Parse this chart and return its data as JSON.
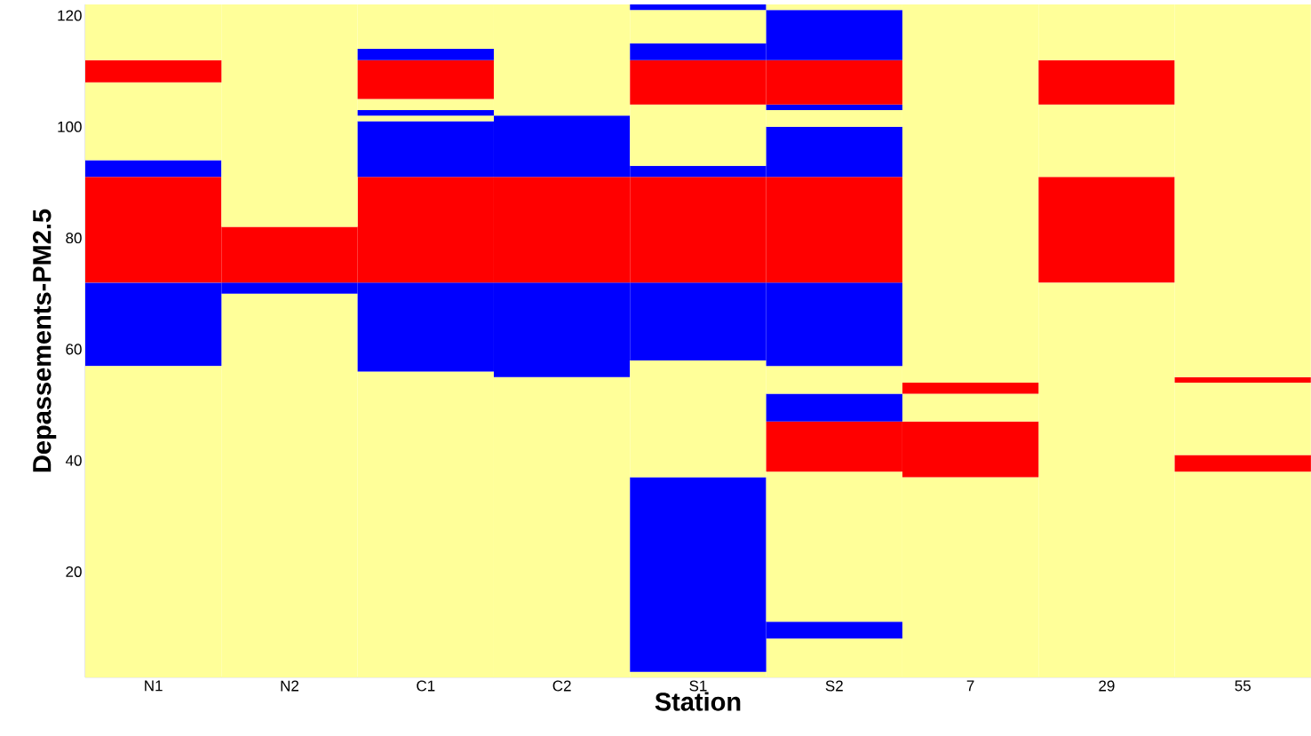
{
  "chart_data": {
    "type": "bar",
    "stacked": true,
    "xlabel": "Station",
    "ylabel": "Depassements-PM2.5",
    "categories": [
      "N1",
      "N2",
      "C1",
      "C2",
      "S1",
      "S2",
      "7",
      "29",
      "55"
    ],
    "ylim": [
      1,
      122
    ],
    "yticks": [
      20,
      40,
      60,
      80,
      100,
      120
    ],
    "grid": false,
    "series": [
      {
        "values": [
          57,
          70,
          56,
          55,
          2,
          8,
          37,
          72,
          38
        ],
        "colors": [
          "#ffff99",
          "#ffff99",
          "#ffff99",
          "#ffff99",
          "#ffff99",
          "#ffff99",
          "#ffff99",
          "#ffff99",
          "#ffff99"
        ]
      },
      {
        "values": [
          15,
          2,
          16,
          17,
          35,
          3,
          10,
          19,
          3
        ],
        "colors": [
          "#0000ff",
          "#0000ff",
          "#0000ff",
          "#0000ff",
          "#0000ff",
          "#0000ff",
          "#ff0000",
          "#ff0000",
          "#ff0000"
        ]
      },
      {
        "values": [
          19,
          10,
          19,
          19,
          21,
          27,
          5,
          13,
          13
        ],
        "colors": [
          "#ff0000",
          "#ff0000",
          "#ff0000",
          "#ff0000",
          "#ffff99",
          "#ffff99",
          "#ffff99",
          "#ffff99",
          "#ffff99"
        ]
      },
      {
        "values": [
          3,
          40,
          10,
          11,
          14,
          9,
          2,
          8,
          1
        ],
        "colors": [
          "#0000ff",
          "#ffff99",
          "#0000ff",
          "#0000ff",
          "#0000ff",
          "#ff0000",
          "#ff0000",
          "#ff0000",
          "#ff0000"
        ]
      },
      {
        "values": [
          14,
          null,
          1,
          20,
          19,
          5,
          68,
          10,
          67
        ],
        "colors": [
          "#ffff99",
          null,
          "#ffff99",
          "#ffff99",
          "#ff0000",
          "#0000ff",
          "#ffff99",
          "#ffff99",
          "#ffff99"
        ]
      },
      {
        "values": [
          4,
          null,
          1,
          null,
          2,
          5,
          null,
          null,
          null
        ],
        "colors": [
          "#ff0000",
          null,
          "#0000ff",
          null,
          "#0000ff",
          "#ffff99",
          null,
          null,
          null
        ]
      },
      {
        "values": [
          10,
          null,
          2,
          null,
          11,
          15,
          null,
          null,
          null
        ],
        "colors": [
          "#ffff99",
          null,
          "#ffff99",
          null,
          "#ffff99",
          "#0000ff",
          null,
          null,
          null
        ]
      },
      {
        "values": [
          null,
          null,
          7,
          null,
          8,
          19,
          null,
          null,
          null
        ],
        "colors": [
          null,
          null,
          "#ff0000",
          null,
          "#ff0000",
          "#ff0000",
          null,
          null,
          null
        ]
      },
      {
        "values": [
          null,
          null,
          2,
          null,
          3,
          9,
          null,
          null,
          null
        ],
        "colors": [
          null,
          null,
          "#0000ff",
          null,
          "#0000ff",
          "#0000ff",
          null,
          null,
          null
        ]
      },
      {
        "values": [
          null,
          null,
          8,
          null,
          6,
          3,
          null,
          null,
          null
        ],
        "colors": [
          null,
          null,
          "#ffff99",
          null,
          "#ffff99",
          "#ffff99",
          null,
          null,
          null
        ]
      },
      {
        "values": [
          null,
          null,
          null,
          null,
          1,
          1,
          null,
          null,
          null
        ],
        "colors": [
          null,
          null,
          null,
          null,
          "#0000ff",
          "#0000ff",
          null,
          null,
          null
        ]
      },
      {
        "values": [
          null,
          null,
          null,
          null,
          null,
          8,
          null,
          null,
          null
        ],
        "colors": [
          null,
          null,
          null,
          null,
          null,
          "#ff0000",
          null,
          null,
          null
        ]
      },
      {
        "values": [
          null,
          null,
          null,
          null,
          null,
          9,
          null,
          null,
          null
        ],
        "colors": [
          null,
          null,
          null,
          null,
          null,
          "#0000ff",
          null,
          null,
          null
        ]
      },
      {
        "values": [
          null,
          null,
          null,
          null,
          null,
          1,
          null,
          null,
          null
        ],
        "colors": [
          null,
          null,
          null,
          null,
          null,
          "#ffff99",
          null,
          null,
          null
        ]
      }
    ]
  }
}
